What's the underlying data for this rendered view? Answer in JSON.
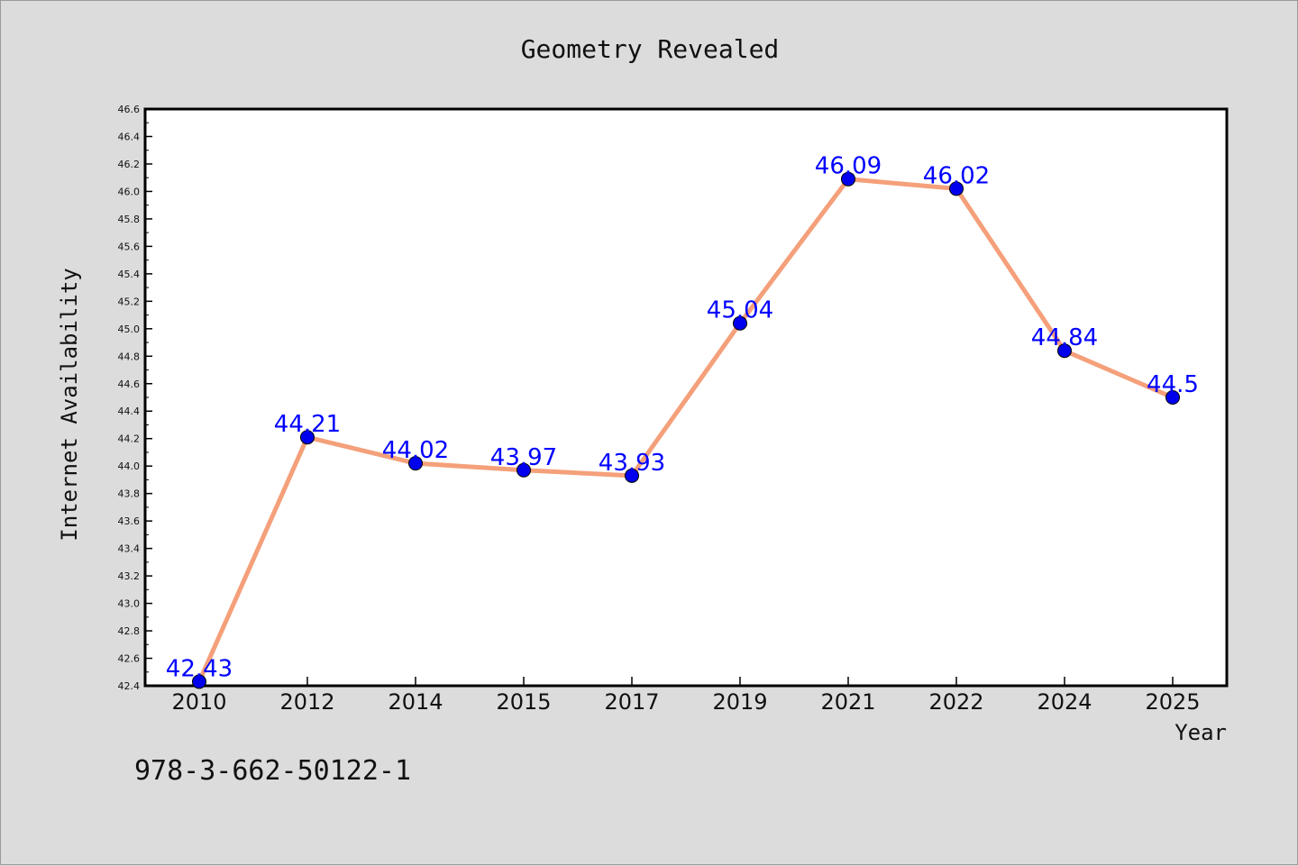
{
  "chart_data": {
    "type": "line",
    "title": "Geometry Revealed",
    "xlabel": "Year",
    "ylabel": "Internet Availability",
    "categories": [
      "2010",
      "2012",
      "2014",
      "2015",
      "2017",
      "2019",
      "2021",
      "2022",
      "2024",
      "2025"
    ],
    "series": [
      {
        "values": [
          42.43,
          44.21,
          44.02,
          43.97,
          43.93,
          45.04,
          46.09,
          46.02,
          44.84,
          44.5
        ],
        "labels": [
          "42.43",
          "44.21",
          "44.02",
          "43.97",
          "43.93",
          "45.04",
          "46.09",
          "46.02",
          "44.84",
          "44.5"
        ],
        "line_color": "#f4a07a",
        "marker_color": "#0000ee"
      }
    ],
    "ylim": [
      42.4,
      46.6
    ],
    "yticks": [
      "42.4",
      "42.6",
      "42.8",
      "43.0",
      "43.2",
      "43.4",
      "43.6",
      "43.8",
      "44.0",
      "44.2",
      "44.4",
      "44.6",
      "44.8",
      "45.0",
      "45.2",
      "45.4",
      "45.6",
      "45.8",
      "46.0",
      "46.2",
      "46.4",
      "46.6"
    ],
    "grid": false,
    "label_color": "#0000ff"
  },
  "footer": {
    "isbn": "978-3-662-50122-1"
  }
}
